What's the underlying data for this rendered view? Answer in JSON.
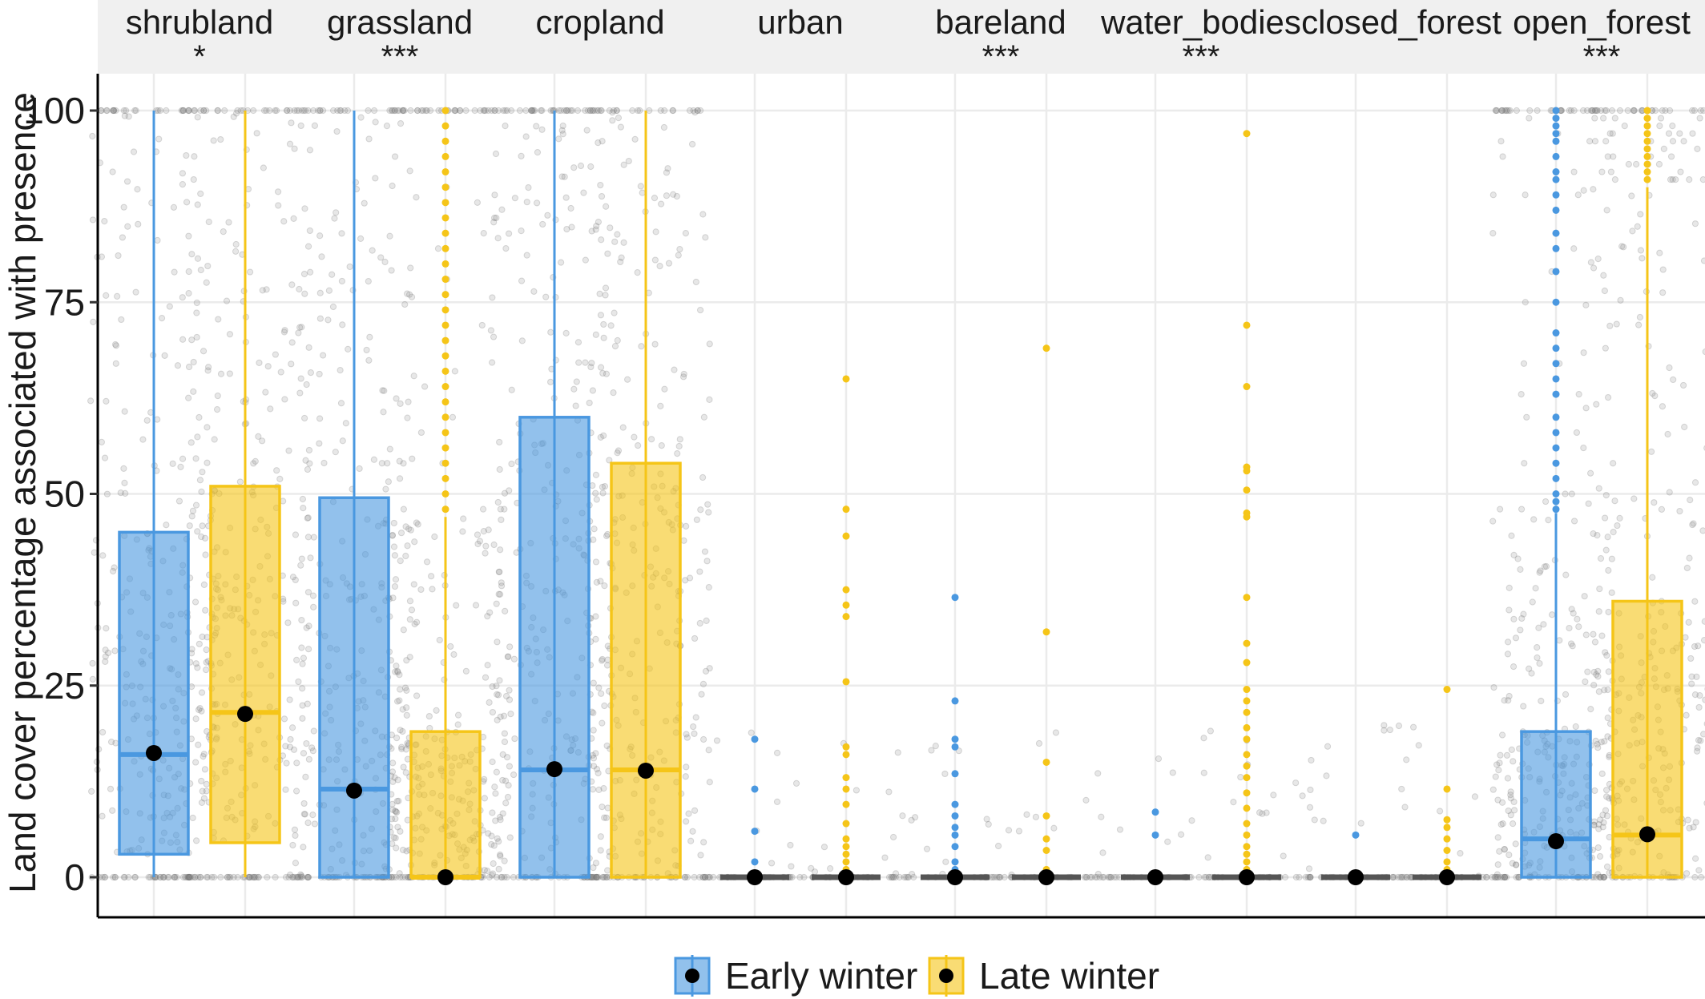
{
  "chart_data": {
    "type": "boxplot",
    "ylabel": "Land cover percentage associated with presence",
    "xlabel": "",
    "ylim": [
      -5,
      105
    ],
    "yticks": [
      0,
      25,
      50,
      75,
      100
    ],
    "grid": true,
    "legend_position": "bottom",
    "series": [
      {
        "name": "Early winter",
        "color": "#4a98e0"
      },
      {
        "name": "Late winter",
        "color": "#f5c518"
      }
    ],
    "facets": [
      {
        "name": "shrubland",
        "significance": "*",
        "boxes": [
          {
            "series": "Early winter",
            "q1": 3,
            "median": 16,
            "q3": 45,
            "whisker_low": 0,
            "whisker_high": 100,
            "mean": 16.2,
            "outliers": []
          },
          {
            "series": "Late winter",
            "q1": 4.5,
            "median": 21.5,
            "q3": 51,
            "whisker_low": 0,
            "whisker_high": 100,
            "mean": 21.3,
            "outliers": []
          }
        ]
      },
      {
        "name": "grassland",
        "significance": "***",
        "boxes": [
          {
            "series": "Early winter",
            "q1": 0,
            "median": 11.5,
            "q3": 49.5,
            "whisker_low": 0,
            "whisker_high": 100,
            "mean": 11.3,
            "outliers": []
          },
          {
            "series": "Late winter",
            "q1": 0,
            "median": 0,
            "q3": 19,
            "whisker_low": 0,
            "whisker_high": 47,
            "mean": 0,
            "outliers": [
              48,
              50,
              52,
              54,
              56,
              58,
              60,
              62,
              64,
              66,
              68,
              70,
              72,
              74,
              76,
              78,
              80,
              82,
              84,
              86,
              88,
              90,
              92,
              94,
              96,
              98,
              100
            ]
          }
        ]
      },
      {
        "name": "cropland",
        "significance": "",
        "boxes": [
          {
            "series": "Early winter",
            "q1": 0,
            "median": 14,
            "q3": 60,
            "whisker_low": 0,
            "whisker_high": 100,
            "mean": 14.1,
            "outliers": []
          },
          {
            "series": "Late winter",
            "q1": 0,
            "median": 14,
            "q3": 54,
            "whisker_low": 0,
            "whisker_high": 100,
            "mean": 13.9,
            "outliers": []
          }
        ]
      },
      {
        "name": "urban",
        "significance": "",
        "boxes": [
          {
            "series": "Early winter",
            "q1": 0,
            "median": 0,
            "q3": 0,
            "whisker_low": 0,
            "whisker_high": 0,
            "mean": 0,
            "outliers": [
              2,
              6,
              11.5,
              18
            ]
          },
          {
            "series": "Late winter",
            "q1": 0,
            "median": 0,
            "q3": 0,
            "whisker_low": 0,
            "whisker_high": 0,
            "mean": 0,
            "outliers": [
              1,
              2,
              3,
              4,
              5,
              7,
              9.5,
              11.5,
              13,
              16,
              17,
              25.5,
              34,
              35.5,
              37.5,
              44.5,
              48,
              65
            ]
          }
        ]
      },
      {
        "name": "bareland",
        "significance": "***",
        "boxes": [
          {
            "series": "Early winter",
            "q1": 0,
            "median": 0,
            "q3": 0,
            "whisker_low": 0,
            "whisker_high": 0,
            "mean": 0,
            "outliers": [
              1,
              2,
              4,
              5.5,
              6.5,
              8,
              9.5,
              13.5,
              17,
              18,
              23,
              36.5
            ]
          },
          {
            "series": "Late winter",
            "q1": 0,
            "median": 0,
            "q3": 0,
            "whisker_low": 0,
            "whisker_high": 0,
            "mean": 0,
            "outliers": [
              1,
              3.5,
              5,
              8,
              15,
              32,
              69
            ]
          }
        ]
      },
      {
        "name": "water_bodies",
        "significance": "***",
        "boxes": [
          {
            "series": "Early winter",
            "q1": 0,
            "median": 0,
            "q3": 0,
            "whisker_low": 0,
            "whisker_high": 0,
            "mean": 0,
            "outliers": [
              5.5,
              8.5
            ]
          },
          {
            "series": "Late winter",
            "q1": 0,
            "median": 0,
            "q3": 0,
            "whisker_low": 0,
            "whisker_high": 0,
            "mean": 0,
            "outliers": [
              1,
              2,
              3,
              4,
              5.5,
              7,
              9,
              11,
              13,
              14.5,
              16,
              18,
              19.5,
              21.5,
              23,
              24.5,
              28,
              30.5,
              36.5,
              47,
              47.5,
              50.5,
              53,
              53.5,
              64,
              72,
              97
            ]
          }
        ]
      },
      {
        "name": "closed_forest",
        "significance": "",
        "boxes": [
          {
            "series": "Early winter",
            "q1": 0,
            "median": 0,
            "q3": 0,
            "whisker_low": 0,
            "whisker_high": 0,
            "mean": 0,
            "outliers": [
              5.5
            ]
          },
          {
            "series": "Late winter",
            "q1": 0,
            "median": 0,
            "q3": 0,
            "whisker_low": 0,
            "whisker_high": 0,
            "mean": 0,
            "outliers": [
              1,
              2,
              3.5,
              5,
              6.5,
              7.5,
              11.5,
              24.5
            ]
          }
        ]
      },
      {
        "name": "open_forest",
        "significance": "***",
        "boxes": [
          {
            "series": "Early winter",
            "q1": 0,
            "median": 5,
            "q3": 19,
            "whisker_low": 0,
            "whisker_high": 47.5,
            "mean": 4.7,
            "outliers": [
              48,
              49,
              50,
              52,
              54,
              56,
              58,
              60,
              63,
              65,
              67,
              69,
              71,
              75,
              79,
              82,
              84,
              87,
              89,
              91,
              92,
              94,
              96,
              97,
              98,
              99,
              100
            ]
          },
          {
            "series": "Late winter",
            "q1": 0,
            "median": 5.5,
            "q3": 36,
            "whisker_low": 0,
            "whisker_high": 90,
            "mean": 5.6,
            "outliers": [
              91,
              92,
              93,
              94,
              95,
              96,
              97,
              98,
              99,
              100
            ]
          }
        ]
      }
    ]
  }
}
